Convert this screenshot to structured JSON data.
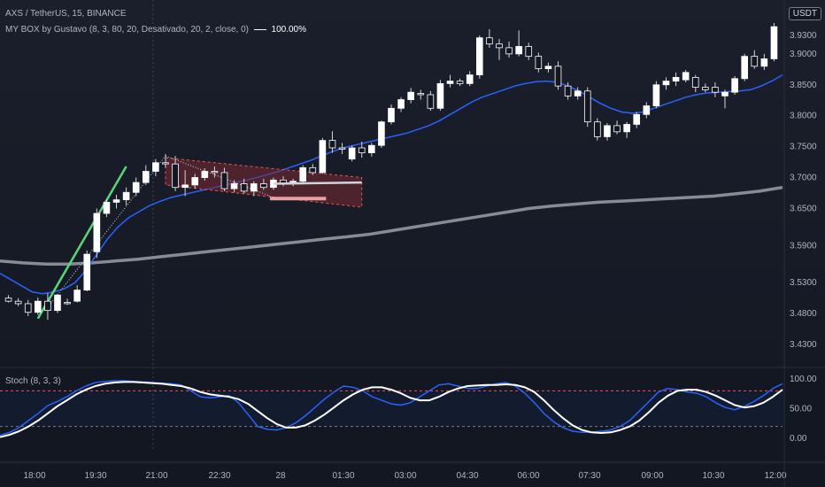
{
  "header": {
    "symbol_line": "AXS / TetherUS, 15, BINANCE",
    "indicator_line": "MY BOX by Gustavo (8, 3, 80, 20, Desativado, 20, 2, close, 0)",
    "indicator_value": "100.00%",
    "currency_badge": "USDT"
  },
  "stoch": {
    "label": "Stoch (8, 3, 3)",
    "ticks": [
      "100.00",
      "50.00",
      "0.00"
    ],
    "band_upper": 80,
    "band_lower": 20
  },
  "colors": {
    "background": "#131722",
    "up_candle": "#ffffff",
    "down_candle": "#131722",
    "wick": "#d1d4dc",
    "ma_fast": "#2962ff",
    "ma_slow": "#9598a1",
    "trend_line": "#5ad77a",
    "box_fill": "#7a2a33",
    "stoch_k": "#2962ff",
    "stoch_d": "#ffffff",
    "band_line": "#ef5350"
  },
  "chart_data": [
    {
      "type": "candlestick",
      "ylim": [
        3.4,
        3.98
      ],
      "y_ticks": [
        "3.9300",
        "3.9000",
        "3.8500",
        "3.8000",
        "3.7500",
        "3.7000",
        "3.6500",
        "3.5900",
        "3.5300",
        "3.4800",
        "3.4300"
      ],
      "x_ticks": [
        "18:00",
        "19:30",
        "21:00",
        "22:30",
        "28",
        "01:30",
        "03:00",
        "04:30",
        "06:00",
        "07:30",
        "09:00",
        "10:30",
        "12:00"
      ],
      "candles": [
        {
          "o": 3.505,
          "h": 3.51,
          "l": 3.498,
          "c": 3.5
        },
        {
          "o": 3.5,
          "h": 3.505,
          "l": 3.492,
          "c": 3.496
        },
        {
          "o": 3.496,
          "h": 3.502,
          "l": 3.476,
          "c": 3.482
        },
        {
          "o": 3.482,
          "h": 3.506,
          "l": 3.478,
          "c": 3.5
        },
        {
          "o": 3.5,
          "h": 3.513,
          "l": 3.47,
          "c": 3.485
        },
        {
          "o": 3.485,
          "h": 3.512,
          "l": 3.481,
          "c": 3.51
        },
        {
          "o": 3.498,
          "h": 3.504,
          "l": 3.494,
          "c": 3.496
        },
        {
          "o": 3.5,
          "h": 3.526,
          "l": 3.498,
          "c": 3.518
        },
        {
          "o": 3.518,
          "h": 3.582,
          "l": 3.516,
          "c": 3.576
        },
        {
          "o": 3.58,
          "h": 3.65,
          "l": 3.57,
          "c": 3.642
        },
        {
          "o": 3.642,
          "h": 3.665,
          "l": 3.636,
          "c": 3.66
        },
        {
          "o": 3.66,
          "h": 3.672,
          "l": 3.65,
          "c": 3.664
        },
        {
          "o": 3.664,
          "h": 3.684,
          "l": 3.655,
          "c": 3.676
        },
        {
          "o": 3.676,
          "h": 3.7,
          "l": 3.67,
          "c": 3.692
        },
        {
          "o": 3.692,
          "h": 3.72,
          "l": 3.688,
          "c": 3.71
        },
        {
          "o": 3.71,
          "h": 3.73,
          "l": 3.702,
          "c": 3.724
        },
        {
          "o": 3.724,
          "h": 3.738,
          "l": 3.716,
          "c": 3.722
        },
        {
          "o": 3.722,
          "h": 3.735,
          "l": 3.678,
          "c": 3.684
        },
        {
          "o": 3.684,
          "h": 3.712,
          "l": 3.67,
          "c": 3.688
        },
        {
          "o": 3.688,
          "h": 3.706,
          "l": 3.682,
          "c": 3.7
        },
        {
          "o": 3.7,
          "h": 3.715,
          "l": 3.695,
          "c": 3.71
        },
        {
          "o": 3.71,
          "h": 3.718,
          "l": 3.7,
          "c": 3.708
        },
        {
          "o": 3.708,
          "h": 3.716,
          "l": 3.678,
          "c": 3.682
        },
        {
          "o": 3.682,
          "h": 3.696,
          "l": 3.676,
          "c": 3.69
        },
        {
          "o": 3.69,
          "h": 3.698,
          "l": 3.674,
          "c": 3.678
        },
        {
          "o": 3.678,
          "h": 3.694,
          "l": 3.67,
          "c": 3.69
        },
        {
          "o": 3.69,
          "h": 3.698,
          "l": 3.68,
          "c": 3.684
        },
        {
          "o": 3.684,
          "h": 3.7,
          "l": 3.68,
          "c": 3.696
        },
        {
          "o": 3.696,
          "h": 3.702,
          "l": 3.686,
          "c": 3.69
        },
        {
          "o": 3.69,
          "h": 3.698,
          "l": 3.686,
          "c": 3.694
        },
        {
          "o": 3.694,
          "h": 3.72,
          "l": 3.69,
          "c": 3.716
        },
        {
          "o": 3.716,
          "h": 3.722,
          "l": 3.704,
          "c": 3.708
        },
        {
          "o": 3.708,
          "h": 3.764,
          "l": 3.706,
          "c": 3.76
        },
        {
          "o": 3.76,
          "h": 3.775,
          "l": 3.74,
          "c": 3.748
        },
        {
          "o": 3.748,
          "h": 3.756,
          "l": 3.738,
          "c": 3.746
        },
        {
          "o": 3.73,
          "h": 3.752,
          "l": 3.726,
          "c": 3.748
        },
        {
          "o": 3.748,
          "h": 3.758,
          "l": 3.732,
          "c": 3.74
        },
        {
          "o": 3.74,
          "h": 3.756,
          "l": 3.734,
          "c": 3.752
        },
        {
          "o": 3.752,
          "h": 3.792,
          "l": 3.748,
          "c": 3.79
        },
        {
          "o": 3.79,
          "h": 3.818,
          "l": 3.786,
          "c": 3.812
        },
        {
          "o": 3.812,
          "h": 3.83,
          "l": 3.806,
          "c": 3.826
        },
        {
          "o": 3.826,
          "h": 3.845,
          "l": 3.82,
          "c": 3.838
        },
        {
          "o": 3.836,
          "h": 3.842,
          "l": 3.826,
          "c": 3.834
        },
        {
          "o": 3.834,
          "h": 3.84,
          "l": 3.808,
          "c": 3.812
        },
        {
          "o": 3.812,
          "h": 3.858,
          "l": 3.808,
          "c": 3.852
        },
        {
          "o": 3.852,
          "h": 3.866,
          "l": 3.846,
          "c": 3.856
        },
        {
          "o": 3.856,
          "h": 3.86,
          "l": 3.848,
          "c": 3.852
        },
        {
          "o": 3.852,
          "h": 3.872,
          "l": 3.848,
          "c": 3.866
        },
        {
          "o": 3.866,
          "h": 3.93,
          "l": 3.86,
          "c": 3.926
        },
        {
          "o": 3.926,
          "h": 3.94,
          "l": 3.91,
          "c": 3.916
        },
        {
          "o": 3.916,
          "h": 3.924,
          "l": 3.89,
          "c": 3.91
        },
        {
          "o": 3.91,
          "h": 3.92,
          "l": 3.894,
          "c": 3.9
        },
        {
          "o": 3.9,
          "h": 3.938,
          "l": 3.896,
          "c": 3.912
        },
        {
          "o": 3.912,
          "h": 3.918,
          "l": 3.89,
          "c": 3.896
        },
        {
          "o": 3.896,
          "h": 3.902,
          "l": 3.87,
          "c": 3.876
        },
        {
          "o": 3.876,
          "h": 3.886,
          "l": 3.87,
          "c": 3.88
        },
        {
          "o": 3.88,
          "h": 3.888,
          "l": 3.842,
          "c": 3.848
        },
        {
          "o": 3.848,
          "h": 3.854,
          "l": 3.826,
          "c": 3.832
        },
        {
          "o": 3.832,
          "h": 3.846,
          "l": 3.826,
          "c": 3.84
        },
        {
          "o": 3.84,
          "h": 3.846,
          "l": 3.782,
          "c": 3.79
        },
        {
          "o": 3.79,
          "h": 3.796,
          "l": 3.76,
          "c": 3.766
        },
        {
          "o": 3.766,
          "h": 3.788,
          "l": 3.76,
          "c": 3.784
        },
        {
          "o": 3.784,
          "h": 3.792,
          "l": 3.77,
          "c": 3.774
        },
        {
          "o": 3.774,
          "h": 3.79,
          "l": 3.764,
          "c": 3.786
        },
        {
          "o": 3.786,
          "h": 3.806,
          "l": 3.78,
          "c": 3.802
        },
        {
          "o": 3.802,
          "h": 3.822,
          "l": 3.796,
          "c": 3.816
        },
        {
          "o": 3.816,
          "h": 3.856,
          "l": 3.812,
          "c": 3.85
        },
        {
          "o": 3.85,
          "h": 3.862,
          "l": 3.842,
          "c": 3.856
        },
        {
          "o": 3.856,
          "h": 3.87,
          "l": 3.848,
          "c": 3.862
        },
        {
          "o": 3.858,
          "h": 3.874,
          "l": 3.854,
          "c": 3.87
        },
        {
          "o": 3.862,
          "h": 3.866,
          "l": 3.838,
          "c": 3.846
        },
        {
          "o": 3.846,
          "h": 3.852,
          "l": 3.838,
          "c": 3.842
        },
        {
          "o": 3.846,
          "h": 3.854,
          "l": 3.83,
          "c": 3.838
        },
        {
          "o": 3.832,
          "h": 3.842,
          "l": 3.812,
          "c": 3.838
        },
        {
          "o": 3.838,
          "h": 3.864,
          "l": 3.834,
          "c": 3.86
        },
        {
          "o": 3.86,
          "h": 3.9,
          "l": 3.856,
          "c": 3.896
        },
        {
          "o": 3.896,
          "h": 3.906,
          "l": 3.876,
          "c": 3.88
        },
        {
          "o": 3.88,
          "h": 3.9,
          "l": 3.874,
          "c": 3.892
        },
        {
          "o": 3.892,
          "h": 3.95,
          "l": 3.888,
          "c": 3.944
        }
      ],
      "ma_fast": [
        3.545,
        3.535,
        3.525,
        3.515,
        3.512,
        3.515,
        3.52,
        3.53,
        3.55,
        3.575,
        3.6,
        3.62,
        3.635,
        3.645,
        3.655,
        3.662,
        3.668,
        3.672,
        3.676,
        3.68,
        3.684,
        3.688,
        3.692,
        3.696,
        3.7,
        3.705,
        3.71,
        3.716,
        3.722,
        3.728,
        3.735,
        3.742,
        3.748,
        3.752,
        3.756,
        3.76,
        3.764,
        3.768,
        3.772,
        3.778,
        3.784,
        3.792,
        3.802,
        3.812,
        3.822,
        3.83,
        3.836,
        3.842,
        3.848,
        3.852,
        3.855,
        3.856,
        3.854,
        3.848,
        3.84,
        3.83,
        3.82,
        3.812,
        3.806,
        3.804,
        3.806,
        3.812,
        3.818,
        3.824,
        3.83,
        3.834,
        3.837,
        3.838,
        3.839,
        3.84,
        3.842,
        3.848,
        3.856,
        3.866
      ],
      "ma_slow": [
        3.565,
        3.562,
        3.56,
        3.56,
        3.562,
        3.565,
        3.568,
        3.572,
        3.576,
        3.58,
        3.584,
        3.588,
        3.592,
        3.596,
        3.6,
        3.604,
        3.608,
        3.614,
        3.62,
        3.626,
        3.632,
        3.638,
        3.644,
        3.65,
        3.654,
        3.657,
        3.66,
        3.662,
        3.664,
        3.666,
        3.668,
        3.67,
        3.674,
        3.678,
        3.684
      ],
      "annotations": {
        "trend_line": [
          [
            3,
            3.472
          ],
          [
            12,
            3.718
          ]
        ],
        "box_top": [
          [
            16,
            3.732
          ],
          [
            36,
            3.7
          ]
        ],
        "box_bottom": [
          [
            16,
            3.688
          ],
          [
            36,
            3.652
          ]
        ],
        "box_mid_line": [
          [
            27,
            3.69
          ],
          [
            36,
            3.692
          ]
        ],
        "box_base_bar": [
          [
            27,
            3.666
          ],
          [
            32,
            3.666
          ]
        ]
      }
    },
    {
      "type": "line",
      "ylim": [
        0,
        100
      ],
      "series": [
        {
          "values": [
            5,
            10,
            18,
            30,
            42,
            55,
            62,
            70,
            80,
            88,
            94,
            96,
            97,
            97,
            96,
            95,
            94,
            93,
            92,
            90,
            80,
            70,
            68,
            70,
            72,
            60,
            40,
            20,
            15,
            14,
            18,
            26,
            38,
            52,
            66,
            78,
            88,
            86,
            80,
            70,
            64,
            58,
            56,
            60,
            70,
            80,
            90,
            92,
            88,
            84,
            84,
            88,
            92,
            94,
            88,
            76,
            60,
            42,
            28,
            18,
            12,
            10,
            10,
            12,
            14,
            20,
            30,
            46,
            62,
            78,
            84,
            82,
            78,
            76,
            70,
            60,
            52,
            48,
            54,
            62,
            72,
            84,
            92
          ]
        },
        {
          "values": [
            2,
            6,
            12,
            20,
            30,
            42,
            54,
            64,
            74,
            82,
            88,
            92,
            94,
            95,
            95,
            94,
            93,
            92,
            90,
            88,
            84,
            78,
            74,
            72,
            70,
            66,
            58,
            46,
            34,
            24,
            18,
            18,
            22,
            30,
            40,
            52,
            64,
            74,
            82,
            86,
            86,
            82,
            76,
            68,
            64,
            64,
            70,
            78,
            84,
            88,
            89,
            90,
            90,
            91,
            90,
            86,
            78,
            64,
            48,
            34,
            22,
            14,
            10,
            9,
            10,
            14,
            20,
            30,
            44,
            60,
            72,
            80,
            82,
            82,
            78,
            72,
            64,
            56,
            52,
            54,
            60,
            70,
            82
          ]
        }
      ]
    }
  ]
}
